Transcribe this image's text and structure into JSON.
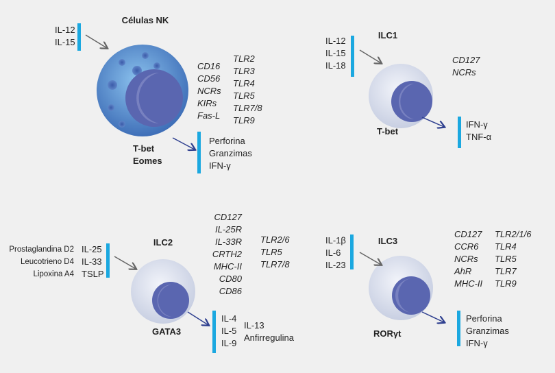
{
  "colors": {
    "bar": "#1ba8e0",
    "arrow_in": "#666666",
    "arrow_out": "#2e3f8f",
    "nk_cell": "#4f7fc8",
    "ilc_cell": "#d6dceb",
    "nucleus": "#5a66b0",
    "background": "#f0f0f0"
  },
  "nk": {
    "title": "Células NK",
    "inputs": [
      "IL-12",
      "IL-15"
    ],
    "markers": [
      "CD16",
      "CD56",
      "NCRs",
      "KIRs",
      "Fas-L"
    ],
    "tlrs": [
      "TLR2",
      "TLR3",
      "TLR4",
      "TLR5",
      "TLR7/8",
      "TLR9"
    ],
    "tf": [
      "T-bet",
      "Eomes"
    ],
    "outputs": [
      "Perforina",
      "Granzimas",
      "IFN-γ"
    ]
  },
  "ilc1": {
    "title": "ILC1",
    "inputs": [
      "IL-12",
      "IL-15",
      "IL-18"
    ],
    "markers": [
      "CD127",
      "NCRs"
    ],
    "tf": [
      "T-bet"
    ],
    "outputs": [
      "IFN-γ",
      "TNF-α"
    ]
  },
  "ilc2": {
    "title": "ILC2",
    "lipids": [
      "Prostaglandina D2",
      "Leucotrieno D4",
      "Lipoxina A4"
    ],
    "inputs": [
      "IL-25",
      "IL-33",
      "TSLP"
    ],
    "markers": [
      "CD127",
      "IL-25R",
      "IL-33R",
      "CRTH2",
      "MHC-II",
      "CD80",
      "CD86"
    ],
    "tlrs": [
      "TLR2/6",
      "TLR5",
      "TLR7/8"
    ],
    "tf": [
      "GATA3"
    ],
    "outputs": [
      "IL-4",
      "IL-5",
      "IL-9"
    ],
    "outputs2": [
      "IL-13",
      "Anfirregulina"
    ]
  },
  "ilc3": {
    "title": "ILC3",
    "inputs": [
      "IL-1β",
      "IL-6",
      "IL-23"
    ],
    "markers": [
      "CD127",
      "CCR6",
      "NCRs",
      "AhR",
      "MHC-II"
    ],
    "tlrs": [
      "TLR2/1/6",
      "TLR4",
      "TLR5",
      "TLR7",
      "TLR9"
    ],
    "tf": [
      "RORγt"
    ],
    "outputs": [
      "Perforina",
      "Granzimas",
      "IFN-γ"
    ]
  }
}
